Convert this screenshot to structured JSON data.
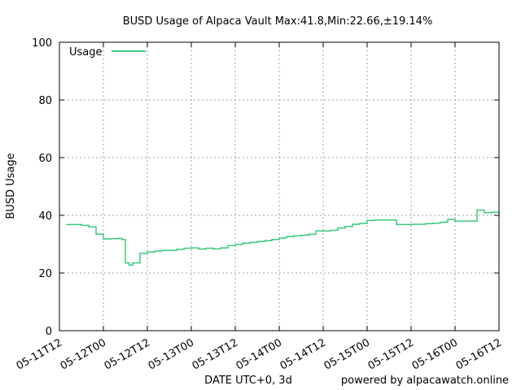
{
  "chart_data": {
    "type": "line",
    "title": "BUSD Usage of Alpaca Vault Max:41.8,Min:22.66,±19.14%",
    "xlabel": "DATE UTC+0, 3d",
    "ylabel": "BUSD Usage",
    "credit": "powered by alpacawatch.online",
    "ylim": [
      0,
      100
    ],
    "yticks": [
      0,
      20,
      40,
      60,
      80,
      100
    ],
    "xlim": [
      "05-11T12",
      "05-16T12"
    ],
    "xticks": [
      "05-11T12",
      "05-12T00",
      "05-12T12",
      "05-13T00",
      "05-13T12",
      "05-14T00",
      "05-14T12",
      "05-15T00",
      "05-15T12",
      "05-16T00",
      "05-16T12"
    ],
    "grid": true,
    "legend_position": "top-left",
    "series": [
      {
        "name": "Usage",
        "color": "#3cc87c",
        "x": [
          "05-11T14",
          "05-11T16",
          "05-11T18",
          "05-11T20",
          "05-11T22",
          "05-12T00",
          "05-12T02",
          "05-12T04",
          "05-12T05",
          "05-12T06",
          "05-12T07",
          "05-12T08",
          "05-12T10",
          "05-12T12",
          "05-12T14",
          "05-12T16",
          "05-12T18",
          "05-12T20",
          "05-12T22",
          "05-13T00",
          "05-13T02",
          "05-13T04",
          "05-13T06",
          "05-13T08",
          "05-13T10",
          "05-13T12",
          "05-13T14",
          "05-13T16",
          "05-13T18",
          "05-13T20",
          "05-13T22",
          "05-14T00",
          "05-14T02",
          "05-14T04",
          "05-14T06",
          "05-14T08",
          "05-14T10",
          "05-14T12",
          "05-14T14",
          "05-14T16",
          "05-14T18",
          "05-14T20",
          "05-14T22",
          "05-15T00",
          "05-15T02",
          "05-15T04",
          "05-15T06",
          "05-15T08",
          "05-15T10",
          "05-15T12",
          "05-15T14",
          "05-15T16",
          "05-15T18",
          "05-15T20",
          "05-15T22",
          "05-16T00",
          "05-16T02",
          "05-16T04",
          "05-16T06",
          "05-16T08",
          "05-16T10",
          "05-16T12"
        ],
        "values": [
          36.8,
          36.8,
          36.5,
          36.0,
          33.5,
          31.8,
          31.9,
          32.0,
          31.6,
          23.5,
          22.7,
          23.5,
          26.8,
          27.3,
          27.6,
          27.8,
          27.9,
          28.2,
          28.6,
          28.7,
          28.3,
          28.6,
          28.4,
          28.7,
          29.5,
          29.9,
          30.3,
          30.6,
          30.9,
          31.2,
          31.6,
          32.1,
          32.6,
          32.9,
          33.1,
          33.4,
          34.6,
          34.6,
          34.8,
          35.6,
          36.1,
          36.9,
          37.2,
          38.2,
          38.4,
          38.4,
          38.4,
          36.8,
          36.8,
          36.9,
          36.9,
          37.1,
          37.3,
          37.6,
          38.6,
          38.0,
          38.0,
          38.0,
          41.8,
          40.9,
          41.1,
          39.6
        ]
      }
    ]
  }
}
